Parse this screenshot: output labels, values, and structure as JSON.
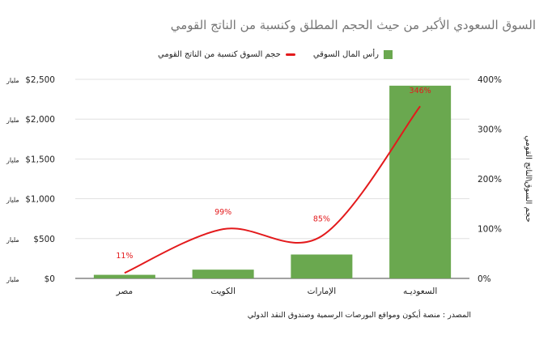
{
  "chart_data": {
    "type": "bar",
    "title": "السوق السعودي الأكبر من حيث الحجم المطلق وكنسبة من الناتج القومي",
    "categories": [
      "مصر",
      "الكويت",
      "الإمارات",
      "السعوديـه"
    ],
    "series": [
      {
        "name": "رأس المال السوقي",
        "type": "bar",
        "axis": "left",
        "color": "#6aa84f",
        "values": [
          45,
          110,
          300,
          2420
        ]
      },
      {
        "name": "حجم السوق كنسبة من الناتج القومي",
        "type": "line",
        "axis": "right",
        "color": "#e31a1c",
        "values": [
          11,
          99,
          85,
          346
        ],
        "data_labels": [
          "11%",
          "99%",
          "85%",
          "346%"
        ]
      }
    ],
    "left_axis": {
      "range": [
        0,
        2500
      ],
      "tick_labels": [
        "$0",
        "$500",
        "$1,000",
        "$1,500",
        "$2,000",
        "$2,500"
      ],
      "unit": "مليار"
    },
    "right_axis": {
      "range": [
        0,
        400
      ],
      "tick_labels": [
        "0%",
        "100%",
        "200%",
        "300%",
        "400%"
      ],
      "label": "حجم السوق\\الناتج القومي"
    },
    "grid": true,
    "legend_position": "top",
    "source": "المصدر : منصة أيكون ومواقع البورصات الرسمية وصندوق النقد الدولي"
  }
}
